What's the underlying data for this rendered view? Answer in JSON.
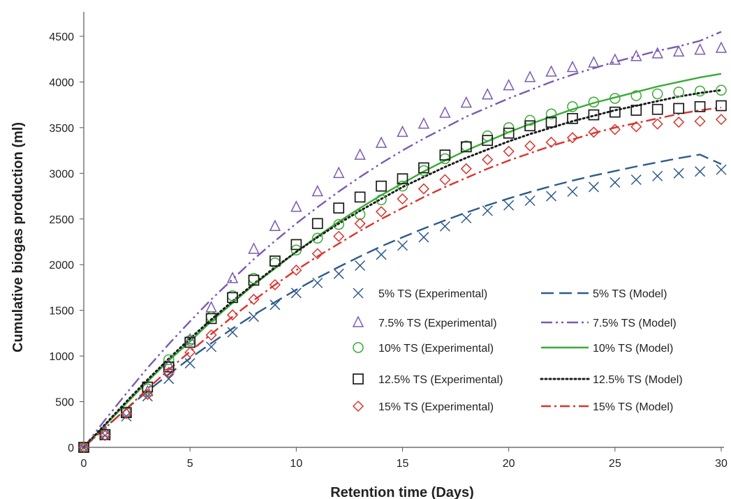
{
  "chart_data": {
    "type": "scatter",
    "xlabel": "Retention time (Days)",
    "ylabel": "Cumulative biogas production (ml)",
    "xlim": [
      0,
      30
    ],
    "ylim": [
      0,
      4500
    ],
    "xticks": [
      0,
      5,
      10,
      15,
      20,
      25,
      30
    ],
    "yticks": [
      0,
      500,
      1000,
      1500,
      2000,
      2500,
      3000,
      3500,
      4000,
      4500
    ],
    "grid": false,
    "legend_position": "bottom-right",
    "x": [
      0,
      1,
      2,
      3,
      4,
      5,
      6,
      7,
      8,
      9,
      10,
      11,
      12,
      13,
      14,
      15,
      16,
      17,
      18,
      19,
      20,
      21,
      22,
      23,
      24,
      25,
      26,
      27,
      28,
      29,
      30
    ],
    "experimental": [
      {
        "name": "5% TS (Experimental)",
        "marker": "x",
        "color": "#2e5b8a",
        "values": [
          0,
          130,
          340,
          560,
          750,
          920,
          1100,
          1260,
          1430,
          1560,
          1690,
          1800,
          1900,
          1990,
          2110,
          2210,
          2300,
          2420,
          2510,
          2590,
          2650,
          2700,
          2750,
          2800,
          2850,
          2900,
          2930,
          2970,
          3000,
          3020,
          3040
        ]
      },
      {
        "name": "7.5% TS (Experimental)",
        "marker": "triangle",
        "color": "#7c5ab0",
        "values": [
          0,
          170,
          380,
          610,
          900,
          1180,
          1530,
          1850,
          2170,
          2420,
          2630,
          2800,
          3000,
          3200,
          3330,
          3450,
          3540,
          3660,
          3770,
          3860,
          3960,
          4050,
          4110,
          4160,
          4210,
          4240,
          4280,
          4310,
          4330,
          4350,
          4370
        ]
      },
      {
        "name": "10% TS (Experimental)",
        "marker": "circle",
        "color": "#3aaa35",
        "values": [
          0,
          140,
          380,
          640,
          960,
          1170,
          1430,
          1660,
          1850,
          2020,
          2160,
          2290,
          2440,
          2550,
          2710,
          2860,
          3030,
          3160,
          3300,
          3410,
          3500,
          3580,
          3650,
          3730,
          3780,
          3820,
          3850,
          3870,
          3890,
          3900,
          3910
        ]
      },
      {
        "name": "12.5% TS (Experimental)",
        "marker": "square",
        "color": "#1a1a1a",
        "values": [
          0,
          140,
          380,
          660,
          880,
          1150,
          1410,
          1640,
          1830,
          2040,
          2220,
          2450,
          2620,
          2740,
          2860,
          2940,
          3060,
          3200,
          3290,
          3360,
          3440,
          3520,
          3560,
          3600,
          3640,
          3670,
          3690,
          3700,
          3710,
          3730,
          3740
        ]
      },
      {
        "name": "15% TS (Experimental)",
        "marker": "diamond",
        "color": "#d9332c",
        "values": [
          0,
          130,
          370,
          580,
          820,
          1040,
          1230,
          1450,
          1620,
          1780,
          1940,
          2120,
          2310,
          2450,
          2580,
          2720,
          2830,
          2930,
          3050,
          3150,
          3240,
          3300,
          3340,
          3390,
          3450,
          3480,
          3510,
          3540,
          3560,
          3570,
          3590
        ]
      }
    ],
    "models": [
      {
        "name": "5% TS (Model)",
        "dash": "long-dash",
        "color": "#2e5b8a",
        "values": [
          0,
          215,
          420,
          615,
          800,
          975,
          1140,
          1300,
          1450,
          1590,
          1725,
          1855,
          1975,
          2090,
          2200,
          2300,
          2395,
          2485,
          2570,
          2650,
          2725,
          2795,
          2860,
          2920,
          2975,
          3025,
          3075,
          3120,
          3165,
          3205,
          3100
        ]
      },
      {
        "name": "7.5% TS (Model)",
        "dash": "dash-dot-dot",
        "color": "#7c5ab0",
        "values": [
          0,
          300,
          590,
          870,
          1130,
          1380,
          1620,
          1840,
          2060,
          2260,
          2450,
          2630,
          2800,
          2960,
          3110,
          3250,
          3380,
          3500,
          3620,
          3720,
          3820,
          3910,
          4000,
          4080,
          4150,
          4220,
          4280,
          4340,
          4390,
          4450,
          4550
        ]
      },
      {
        "name": "10% TS (Model)",
        "dash": "solid",
        "color": "#3aaa35",
        "values": [
          0,
          240,
          480,
          720,
          950,
          1160,
          1380,
          1580,
          1780,
          1960,
          2140,
          2310,
          2470,
          2620,
          2760,
          2890,
          3020,
          3140,
          3250,
          3350,
          3450,
          3540,
          3620,
          3700,
          3770,
          3830,
          3890,
          3950,
          4000,
          4050,
          4090
        ]
      },
      {
        "name": "12.5% TS (Model)",
        "dash": "dotted",
        "color": "#1a1a1a",
        "values": [
          0,
          250,
          500,
          740,
          970,
          1190,
          1400,
          1600,
          1790,
          1970,
          2140,
          2300,
          2450,
          2590,
          2720,
          2850,
          2960,
          3070,
          3170,
          3260,
          3350,
          3430,
          3500,
          3570,
          3630,
          3690,
          3740,
          3790,
          3840,
          3880,
          3910
        ]
      },
      {
        "name": "15% TS (Model)",
        "dash": "dash-dot",
        "color": "#d9332c",
        "values": [
          0,
          210,
          420,
          640,
          850,
          1050,
          1240,
          1430,
          1610,
          1780,
          1940,
          2090,
          2230,
          2370,
          2500,
          2620,
          2740,
          2850,
          2950,
          3050,
          3140,
          3220,
          3300,
          3370,
          3440,
          3500,
          3550,
          3600,
          3650,
          3690,
          3720
        ]
      }
    ]
  }
}
